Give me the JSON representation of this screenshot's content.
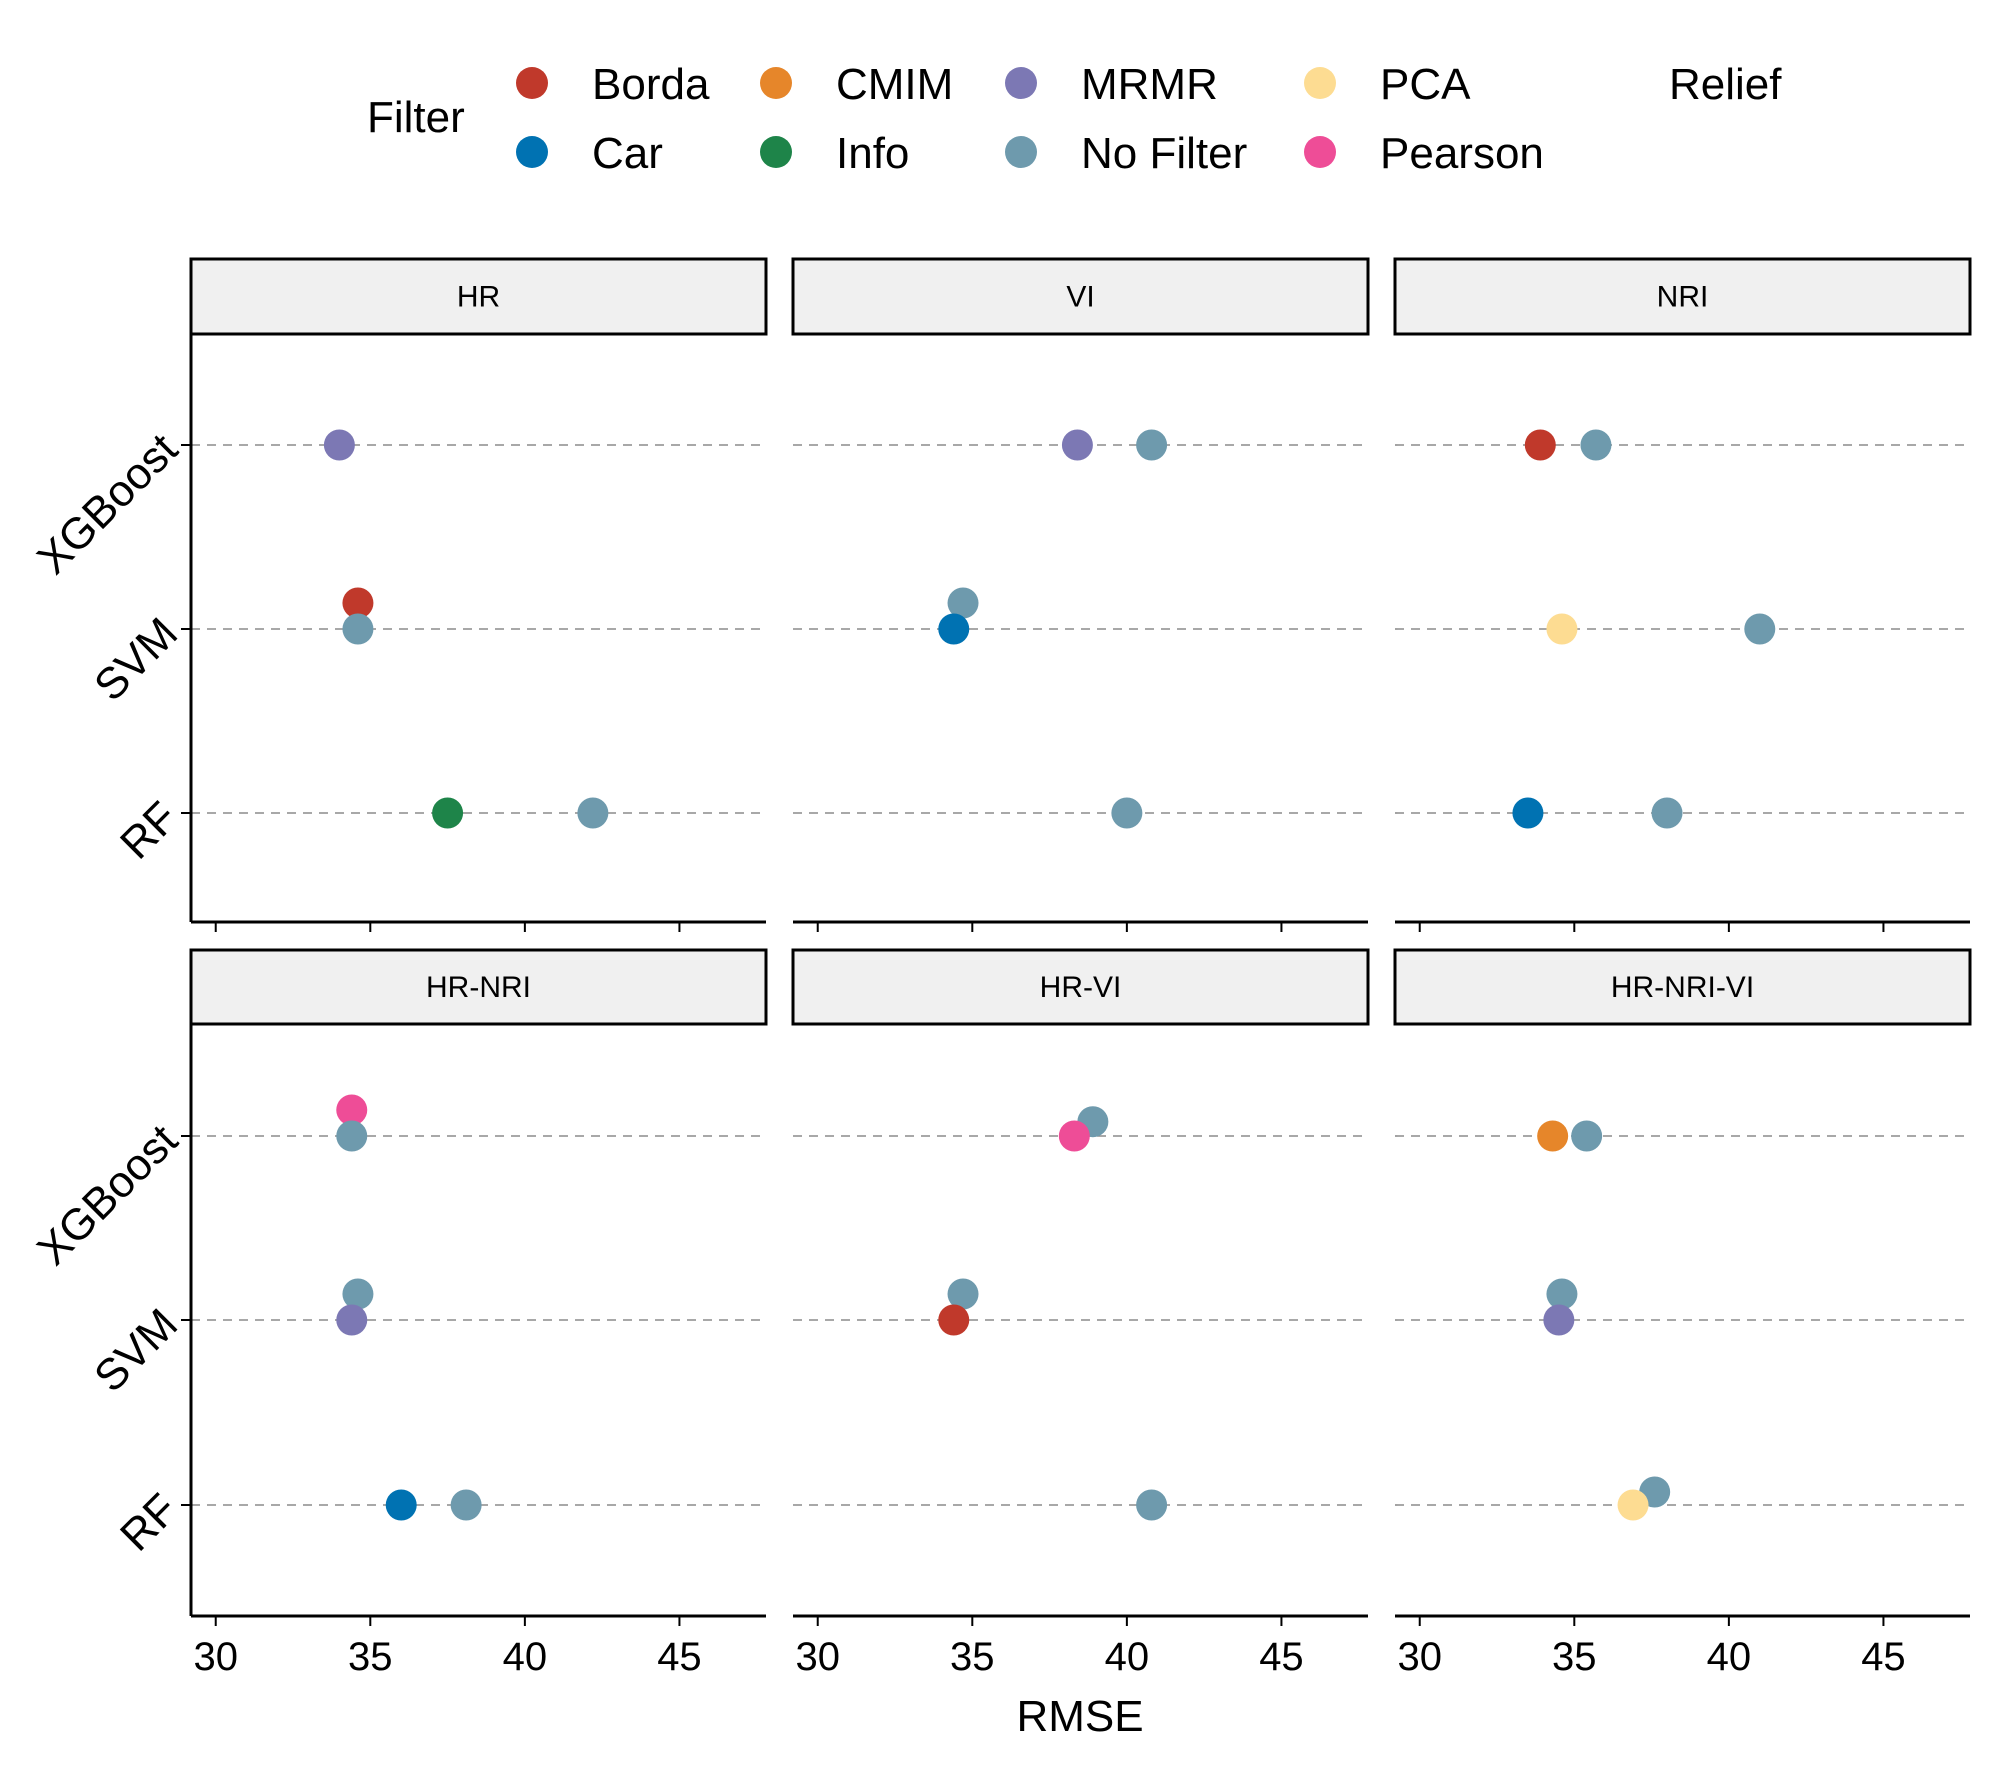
{
  "chart_data": {
    "type": "scatter",
    "xlabel": "RMSE",
    "ylabel": "",
    "xlim": [
      29.2,
      47.8
    ],
    "xticks": [
      30,
      35,
      40,
      45
    ],
    "models": [
      "XGBoost",
      "SVM",
      "RF"
    ],
    "legend": {
      "title": "Filter",
      "placement": "top",
      "entries": [
        {
          "name": "Borda",
          "color": "#C0392B"
        },
        {
          "name": "Car",
          "color": "#0072B2"
        },
        {
          "name": "CMIM",
          "color": "#E6862A"
        },
        {
          "name": "Info",
          "color": "#1E8449"
        },
        {
          "name": "MRMR",
          "color": "#7C78B4"
        },
        {
          "name": "No Filter",
          "color": "#6E9AAD"
        },
        {
          "name": "PCA",
          "color": "#FDDC92"
        },
        {
          "name": "Pearson",
          "color": "#EE4D97"
        },
        {
          "name": "Relief",
          "color": ""
        }
      ]
    },
    "panels": [
      {
        "title": "HR",
        "points": [
          {
            "model": "XGBoost",
            "filter": "MRMR",
            "rmse": 34.0,
            "offset": 0
          },
          {
            "model": "SVM",
            "filter": "Borda",
            "rmse": 34.6,
            "offset": 1
          },
          {
            "model": "SVM",
            "filter": "No Filter",
            "rmse": 34.6,
            "offset": 0
          },
          {
            "model": "RF",
            "filter": "Info",
            "rmse": 37.5,
            "offset": 0
          },
          {
            "model": "RF",
            "filter": "No Filter",
            "rmse": 42.2,
            "offset": 0
          }
        ]
      },
      {
        "title": "VI",
        "points": [
          {
            "model": "XGBoost",
            "filter": "MRMR",
            "rmse": 38.4,
            "offset": 0
          },
          {
            "model": "XGBoost",
            "filter": "No Filter",
            "rmse": 40.8,
            "offset": 0
          },
          {
            "model": "SVM",
            "filter": "No Filter",
            "rmse": 34.7,
            "offset": 1
          },
          {
            "model": "SVM",
            "filter": "Car",
            "rmse": 34.4,
            "offset": 0
          },
          {
            "model": "RF",
            "filter": "No Filter",
            "rmse": 40.0,
            "offset": 0
          }
        ]
      },
      {
        "title": "NRI",
        "points": [
          {
            "model": "XGBoost",
            "filter": "Borda",
            "rmse": 33.9,
            "offset": 0
          },
          {
            "model": "XGBoost",
            "filter": "No Filter",
            "rmse": 35.7,
            "offset": 0
          },
          {
            "model": "SVM",
            "filter": "PCA",
            "rmse": 34.6,
            "offset": 0
          },
          {
            "model": "SVM",
            "filter": "No Filter",
            "rmse": 41.0,
            "offset": 0
          },
          {
            "model": "RF",
            "filter": "Car",
            "rmse": 33.5,
            "offset": 0
          },
          {
            "model": "RF",
            "filter": "No Filter",
            "rmse": 38.0,
            "offset": 0
          }
        ]
      },
      {
        "title": "HR-NRI",
        "points": [
          {
            "model": "XGBoost",
            "filter": "Pearson",
            "rmse": 34.4,
            "offset": 1
          },
          {
            "model": "XGBoost",
            "filter": "No Filter",
            "rmse": 34.4,
            "offset": 0
          },
          {
            "model": "SVM",
            "filter": "No Filter",
            "rmse": 34.6,
            "offset": 1
          },
          {
            "model": "SVM",
            "filter": "MRMR",
            "rmse": 34.4,
            "offset": 0
          },
          {
            "model": "RF",
            "filter": "Car",
            "rmse": 36.0,
            "offset": 0
          },
          {
            "model": "RF",
            "filter": "No Filter",
            "rmse": 38.1,
            "offset": 0
          }
        ]
      },
      {
        "title": "HR-VI",
        "points": [
          {
            "model": "XGBoost",
            "filter": "No Filter",
            "rmse": 38.9,
            "offset": 0.55
          },
          {
            "model": "XGBoost",
            "filter": "Pearson",
            "rmse": 38.3,
            "offset": 0
          },
          {
            "model": "SVM",
            "filter": "No Filter",
            "rmse": 34.7,
            "offset": 1
          },
          {
            "model": "SVM",
            "filter": "Borda",
            "rmse": 34.4,
            "offset": 0
          },
          {
            "model": "RF",
            "filter": "No Filter",
            "rmse": 40.8,
            "offset": 0
          }
        ]
      },
      {
        "title": "HR-NRI-VI",
        "points": [
          {
            "model": "XGBoost",
            "filter": "CMIM",
            "rmse": 34.3,
            "offset": 0
          },
          {
            "model": "XGBoost",
            "filter": "No Filter",
            "rmse": 35.4,
            "offset": 0
          },
          {
            "model": "SVM",
            "filter": "No Filter",
            "rmse": 34.6,
            "offset": 1
          },
          {
            "model": "SVM",
            "filter": "MRMR",
            "rmse": 34.5,
            "offset": 0
          },
          {
            "model": "RF",
            "filter": "No Filter",
            "rmse": 37.6,
            "offset": 0.5
          },
          {
            "model": "RF",
            "filter": "PCA",
            "rmse": 36.9,
            "offset": 0
          }
        ]
      }
    ]
  }
}
